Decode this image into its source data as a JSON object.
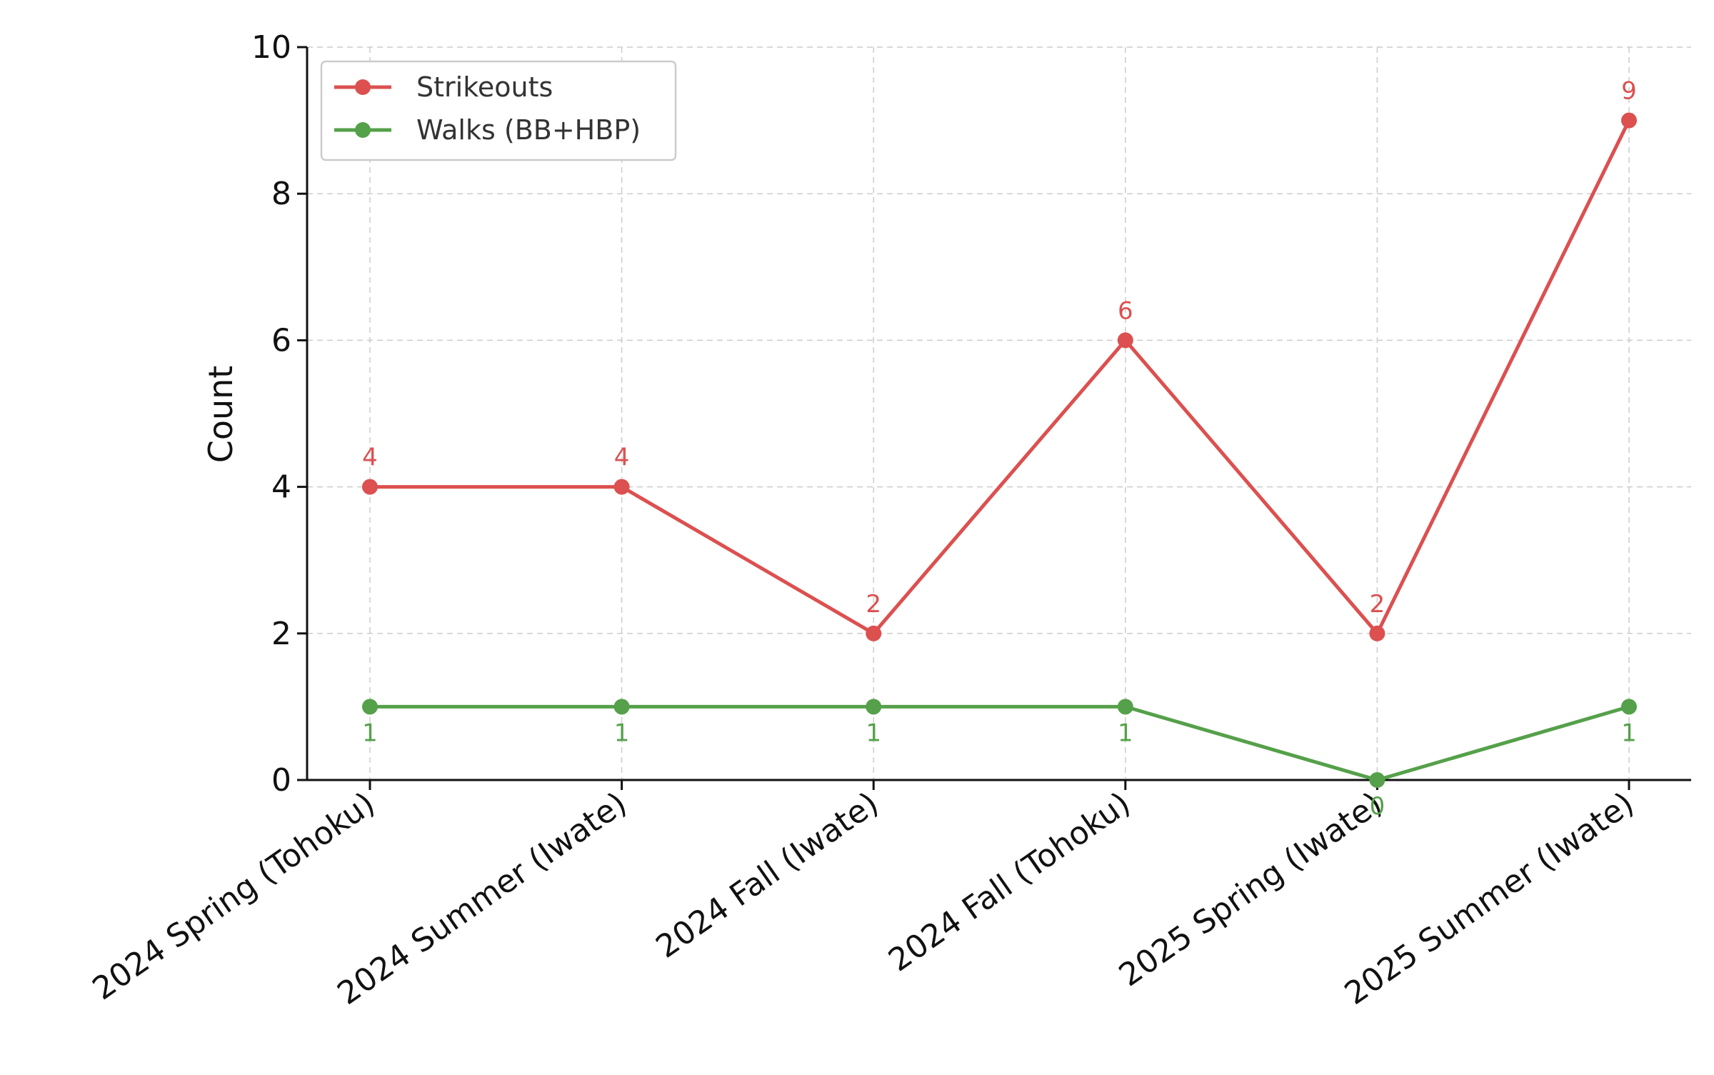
{
  "chart_data": {
    "type": "line",
    "categories": [
      "2024 Spring (Tohoku)",
      "2024 Summer (Iwate)",
      "2024 Fall (Iwate)",
      "2024 Fall (Tohoku)",
      "2025 Spring (Iwate)",
      "2025 Summer (Iwate)"
    ],
    "series": [
      {
        "name": "Strikeouts",
        "values": [
          4,
          4,
          2,
          6,
          2,
          9
        ],
        "color": "#dc5050"
      },
      {
        "name": "Walks (BB+HBP)",
        "values": [
          1,
          1,
          1,
          1,
          0,
          1
        ],
        "color": "#55a04a"
      }
    ],
    "data_labels": {
      "strikeouts": [
        "4",
        "4",
        "2",
        "6",
        "2",
        "9"
      ],
      "walks": [
        "1",
        "1",
        "1",
        "1",
        "0",
        "1"
      ]
    },
    "ylabel": "Count",
    "xlabel": "",
    "ylim": [
      0,
      10
    ],
    "yticks": [
      "0",
      "2",
      "4",
      "6",
      "8",
      "10"
    ],
    "grid": true,
    "legend_position": "top-left",
    "marker": "circle"
  }
}
